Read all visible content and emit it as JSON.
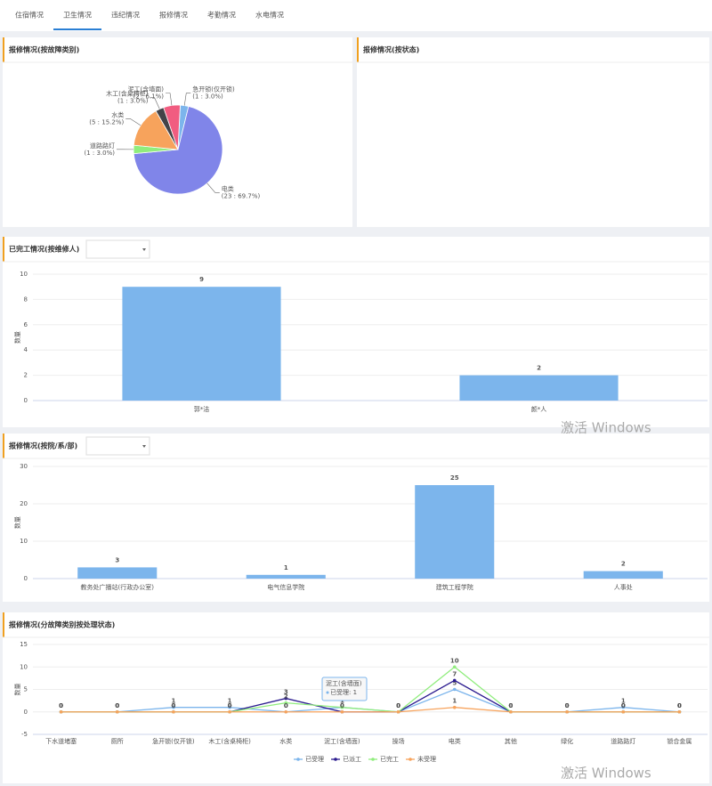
{
  "tabs": [
    "住宿情况",
    "卫生情况",
    "违纪情况",
    "报修情况",
    "考勤情况",
    "水电情况"
  ],
  "active_tab": 1,
  "watermark": "激活 Windows",
  "chart_data": [
    {
      "type": "pie",
      "title": "报修情况(按故障类别)",
      "categories": [
        "急开锁(仅开锁)",
        "电类",
        "道路路灯",
        "水类",
        "木工(含桌椅柜)",
        "泥工(含墙面)"
      ],
      "values": [
        1,
        23,
        1,
        5,
        1,
        2
      ],
      "value_labels": [
        "(1 : 3.0%)",
        "(23 : 69.7%)",
        "(1 : 3.0%)",
        "(5 : 15.2%)",
        "(1 : 3.0%)",
        "(2 : 6.1%)"
      ],
      "colors": [
        "#7cb5ec",
        "#8085e9",
        "#90ed7d",
        "#f7a35c",
        "#434348",
        "#f15c80"
      ]
    },
    {
      "type": "empty",
      "title": "报修情况(按状态)"
    },
    {
      "type": "bar",
      "title": "已完工情况(按维修人)",
      "dropdown": true,
      "ylabel": "数量",
      "categories": [
        "郭*洁",
        "颜*人"
      ],
      "values": [
        9,
        2
      ],
      "color": "#7cb5ec",
      "ylim": [
        0,
        10
      ],
      "yticks": [
        0,
        2,
        4,
        6,
        8,
        10
      ]
    },
    {
      "type": "bar",
      "title": "报修情况(按院/系/部)",
      "dropdown": true,
      "ylabel": "数量",
      "categories": [
        "教务处广播站(行政办公室)",
        "电气信息学院",
        "建筑工程学院",
        "人事处"
      ],
      "values": [
        3,
        1,
        25,
        2
      ],
      "color": "#7cb5ec",
      "ylim": [
        0,
        30
      ],
      "yticks": [
        0,
        10,
        20,
        30
      ]
    },
    {
      "type": "line",
      "title": "报修情况(分故障类别按处理状态)",
      "ylabel": "数量",
      "categories": [
        "下水道堵塞",
        "厕所",
        "急开锁(仅开锁)",
        "木工(含桌椅柜)",
        "水类",
        "泥工(含墙面)",
        "操场",
        "电类",
        "其他",
        "绿化",
        "道路路灯",
        "锁合金属"
      ],
      "series": [
        {
          "name": "已受理",
          "color": "#7cb5ec",
          "values": [
            0,
            0,
            1,
            1,
            0,
            1,
            0,
            5,
            0,
            0,
            1,
            0
          ]
        },
        {
          "name": "已派工",
          "color": "#2b1b8f",
          "values": [
            0,
            0,
            0,
            0,
            3,
            0,
            0,
            7,
            0,
            0,
            0,
            0
          ]
        },
        {
          "name": "已完工",
          "color": "#90ed7d",
          "values": [
            0,
            0,
            0,
            0,
            2,
            1,
            0,
            10,
            0,
            0,
            0,
            0
          ]
        },
        {
          "name": "未受理",
          "color": "#f7a35c",
          "values": [
            0,
            0,
            0,
            0,
            0,
            0,
            0,
            1,
            0,
            0,
            0,
            0
          ]
        }
      ],
      "ylim": [
        -5,
        15
      ],
      "yticks": [
        -5,
        0,
        5,
        10,
        15
      ],
      "tooltip": {
        "title": "泥工(含墙面)",
        "text": "已受理: 1"
      }
    }
  ]
}
